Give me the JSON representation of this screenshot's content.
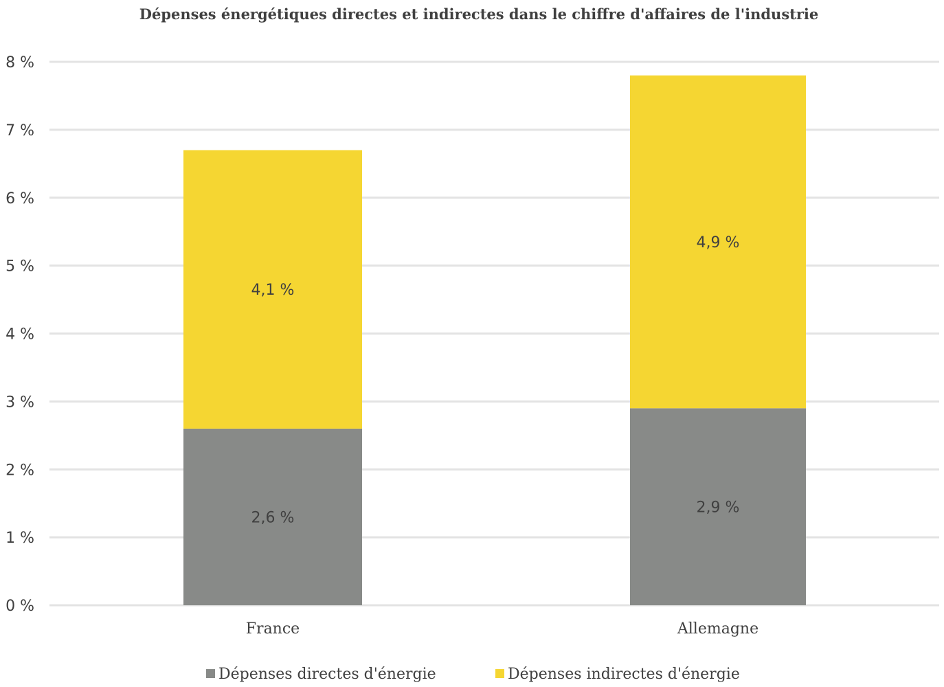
{
  "chart_data": {
    "type": "bar",
    "stacked": true,
    "title": "Dépenses énergétiques directes et indirectes dans le chiffre d'affaires de l'industrie",
    "xlabel": "",
    "ylabel": "",
    "categories": [
      "France",
      "Allemagne"
    ],
    "series": [
      {
        "name": "Dépenses directes d'énergie",
        "values": [
          2.6,
          2.9
        ],
        "labels": [
          "2,6 %",
          "2,9 %"
        ],
        "color": "#888a88"
      },
      {
        "name": "Dépenses indirectes d'énergie",
        "values": [
          4.1,
          4.9
        ],
        "labels": [
          "4,1 %",
          "4,9 %"
        ],
        "color": "#f5d632"
      }
    ],
    "ylim": [
      0,
      8
    ],
    "yticks": [
      0,
      1,
      2,
      3,
      4,
      5,
      6,
      7,
      8
    ],
    "ytick_labels": [
      "0 %",
      "1 %",
      "2 %",
      "3 %",
      "4 %",
      "5 %",
      "6 %",
      "7 %",
      "8 %"
    ],
    "grid": true,
    "legend_position": "bottom"
  }
}
